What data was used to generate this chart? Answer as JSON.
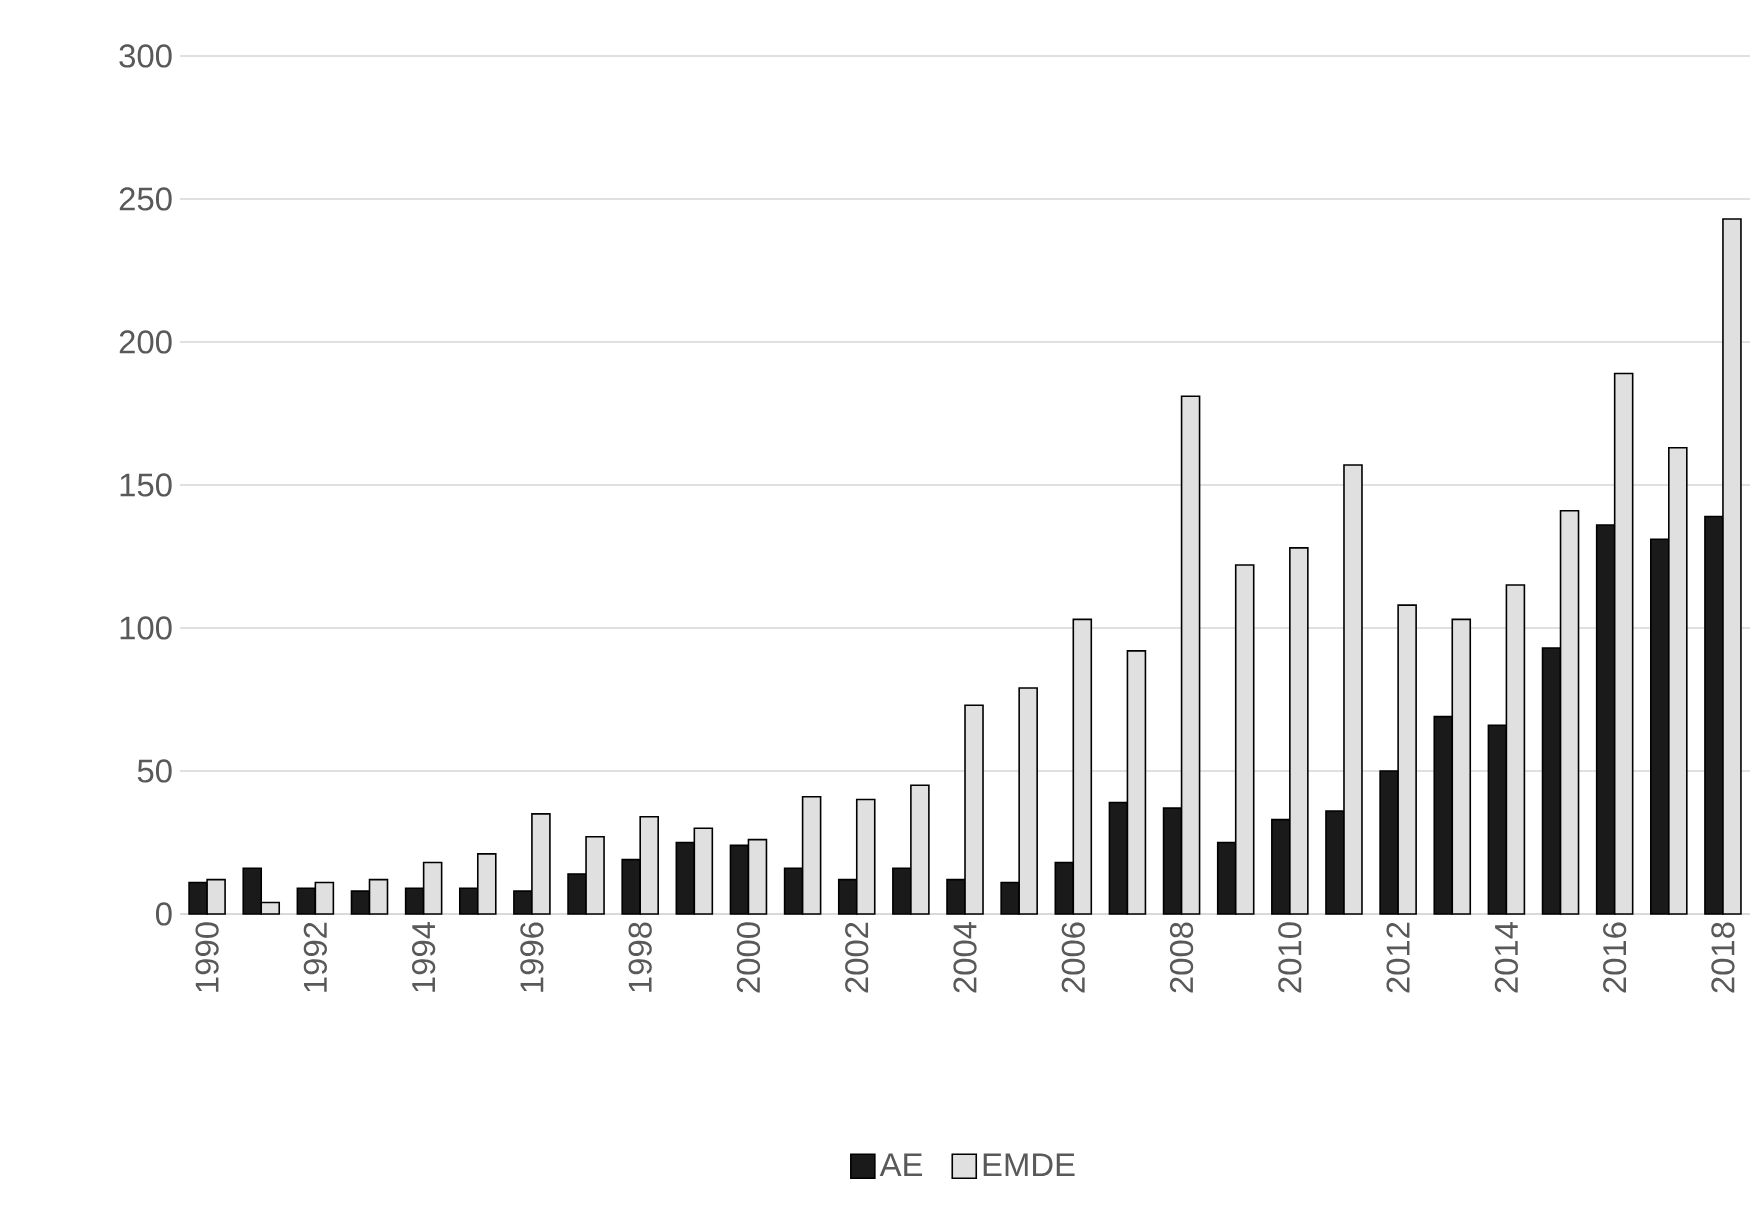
{
  "chart_data": {
    "type": "bar",
    "categories": [
      "1990",
      null,
      "1992",
      null,
      "1994",
      null,
      "1996",
      null,
      "1998",
      null,
      "2000",
      null,
      "2002",
      null,
      "2004",
      null,
      "2006",
      null,
      "2008",
      null,
      "2010",
      null,
      "2012",
      null,
      "2014",
      null,
      "2016",
      null,
      "2018"
    ],
    "series": [
      {
        "name": "AE",
        "color": "#1a1a1a",
        "values": [
          11,
          16,
          9,
          8,
          9,
          9,
          8,
          14,
          19,
          25,
          24,
          16,
          12,
          16,
          12,
          11,
          18,
          39,
          37,
          25,
          33,
          36,
          50,
          69,
          66,
          93,
          136,
          131,
          139
        ]
      },
      {
        "name": "EMDE",
        "color": "#e0e0e0",
        "values": [
          12,
          4,
          11,
          12,
          18,
          21,
          35,
          27,
          34,
          30,
          26,
          41,
          40,
          45,
          73,
          79,
          103,
          92,
          181,
          122,
          128,
          157,
          108,
          103,
          115,
          141,
          189,
          163,
          243
        ]
      }
    ],
    "ylim": [
      0,
      300
    ],
    "yticks": [
      0,
      50,
      100,
      150,
      200,
      250,
      300
    ],
    "grid": "y",
    "legend": "bottom"
  }
}
